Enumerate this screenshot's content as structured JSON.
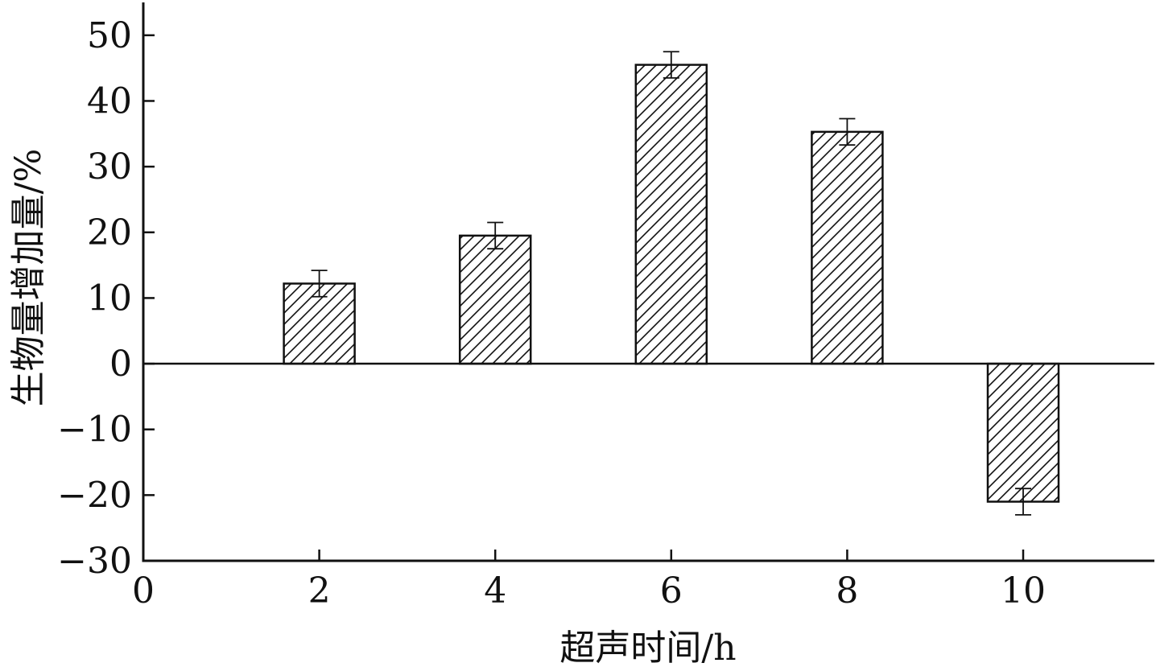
{
  "chart_data": {
    "type": "bar",
    "xlabel": "超声时间/h",
    "ylabel": "生物量增加量/%",
    "categories": [
      "2",
      "4",
      "6",
      "8",
      "10"
    ],
    "x": [
      2,
      4,
      6,
      8,
      10
    ],
    "values": [
      12.2,
      19.5,
      45.5,
      35.3,
      -21.0
    ],
    "errors": [
      2.0,
      2.0,
      2.0,
      2.0,
      2.0
    ],
    "xlim": [
      0,
      11.5
    ],
    "ylim": [
      -30,
      55
    ],
    "xticks": [
      0,
      2,
      4,
      6,
      8,
      10
    ],
    "xtick_labels": [
      "0",
      "2",
      "4",
      "6",
      "8",
      "10"
    ],
    "yticks": [
      -30,
      -20,
      -10,
      0,
      10,
      20,
      30,
      40,
      50
    ],
    "ytick_labels": [
      "−30",
      "−20",
      "−10",
      "0",
      "10",
      "20",
      "30",
      "40",
      "50"
    ],
    "bar_pattern": "diagonal-hatch",
    "grid": false,
    "legend": "none",
    "colors": {
      "bar_fill": "#ffffff",
      "stroke": "#111111"
    }
  }
}
